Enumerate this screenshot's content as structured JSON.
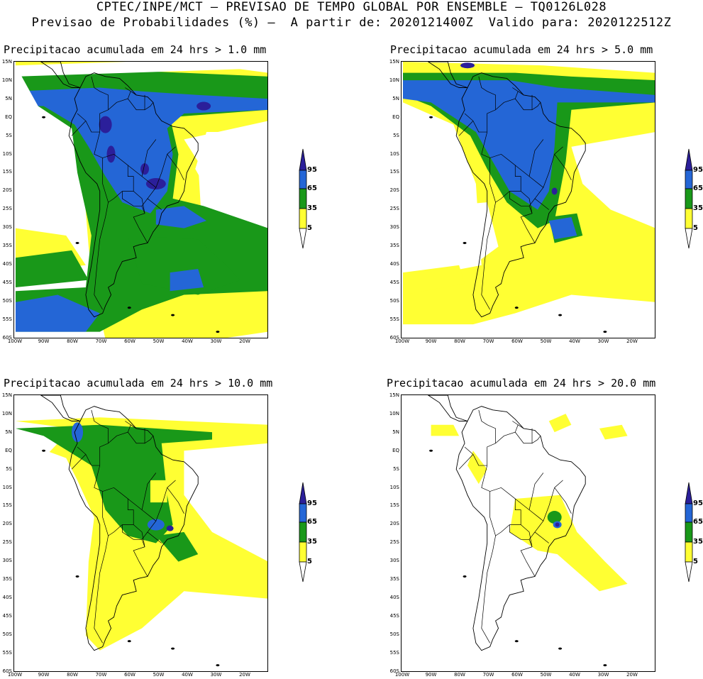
{
  "header": {
    "line1": "CPTEC/INPE/MCT — PREVISAO DE TEMPO GLOBAL POR ENSEMBLE — TQ0126L028",
    "line2": "Previsao de Probabilidades (%) —  A partir de: 2020121400Z  Valido para: 2020122512Z"
  },
  "panels": [
    {
      "title": "Precipitacao acumulada em 24 hrs > 1.0 mm"
    },
    {
      "title": "Precipitacao acumulada em 24 hrs > 5.0 mm"
    },
    {
      "title": "Precipitacao acumulada em 24 hrs > 10.0 mm"
    },
    {
      "title": "Precipitacao acumulada em 24 hrs > 20.0 mm"
    }
  ],
  "axes": {
    "lat_labels": [
      "15N",
      "10N",
      "5N",
      "EQ",
      "5S",
      "10S",
      "15S",
      "20S",
      "25S",
      "30S",
      "35S",
      "40S",
      "45S",
      "50S",
      "55S",
      "60S"
    ],
    "lon_labels": [
      "100W",
      "90W",
      "80W",
      "70W",
      "60W",
      "50W",
      "40W",
      "30W",
      "20W"
    ]
  },
  "colorbar": {
    "labels": [
      "95",
      "65",
      "35",
      "5"
    ],
    "colors": {
      "c5": "#ffff33",
      "c35": "#199819",
      "c65": "#2466d6",
      "c95": "#2b1f9a"
    }
  }
}
